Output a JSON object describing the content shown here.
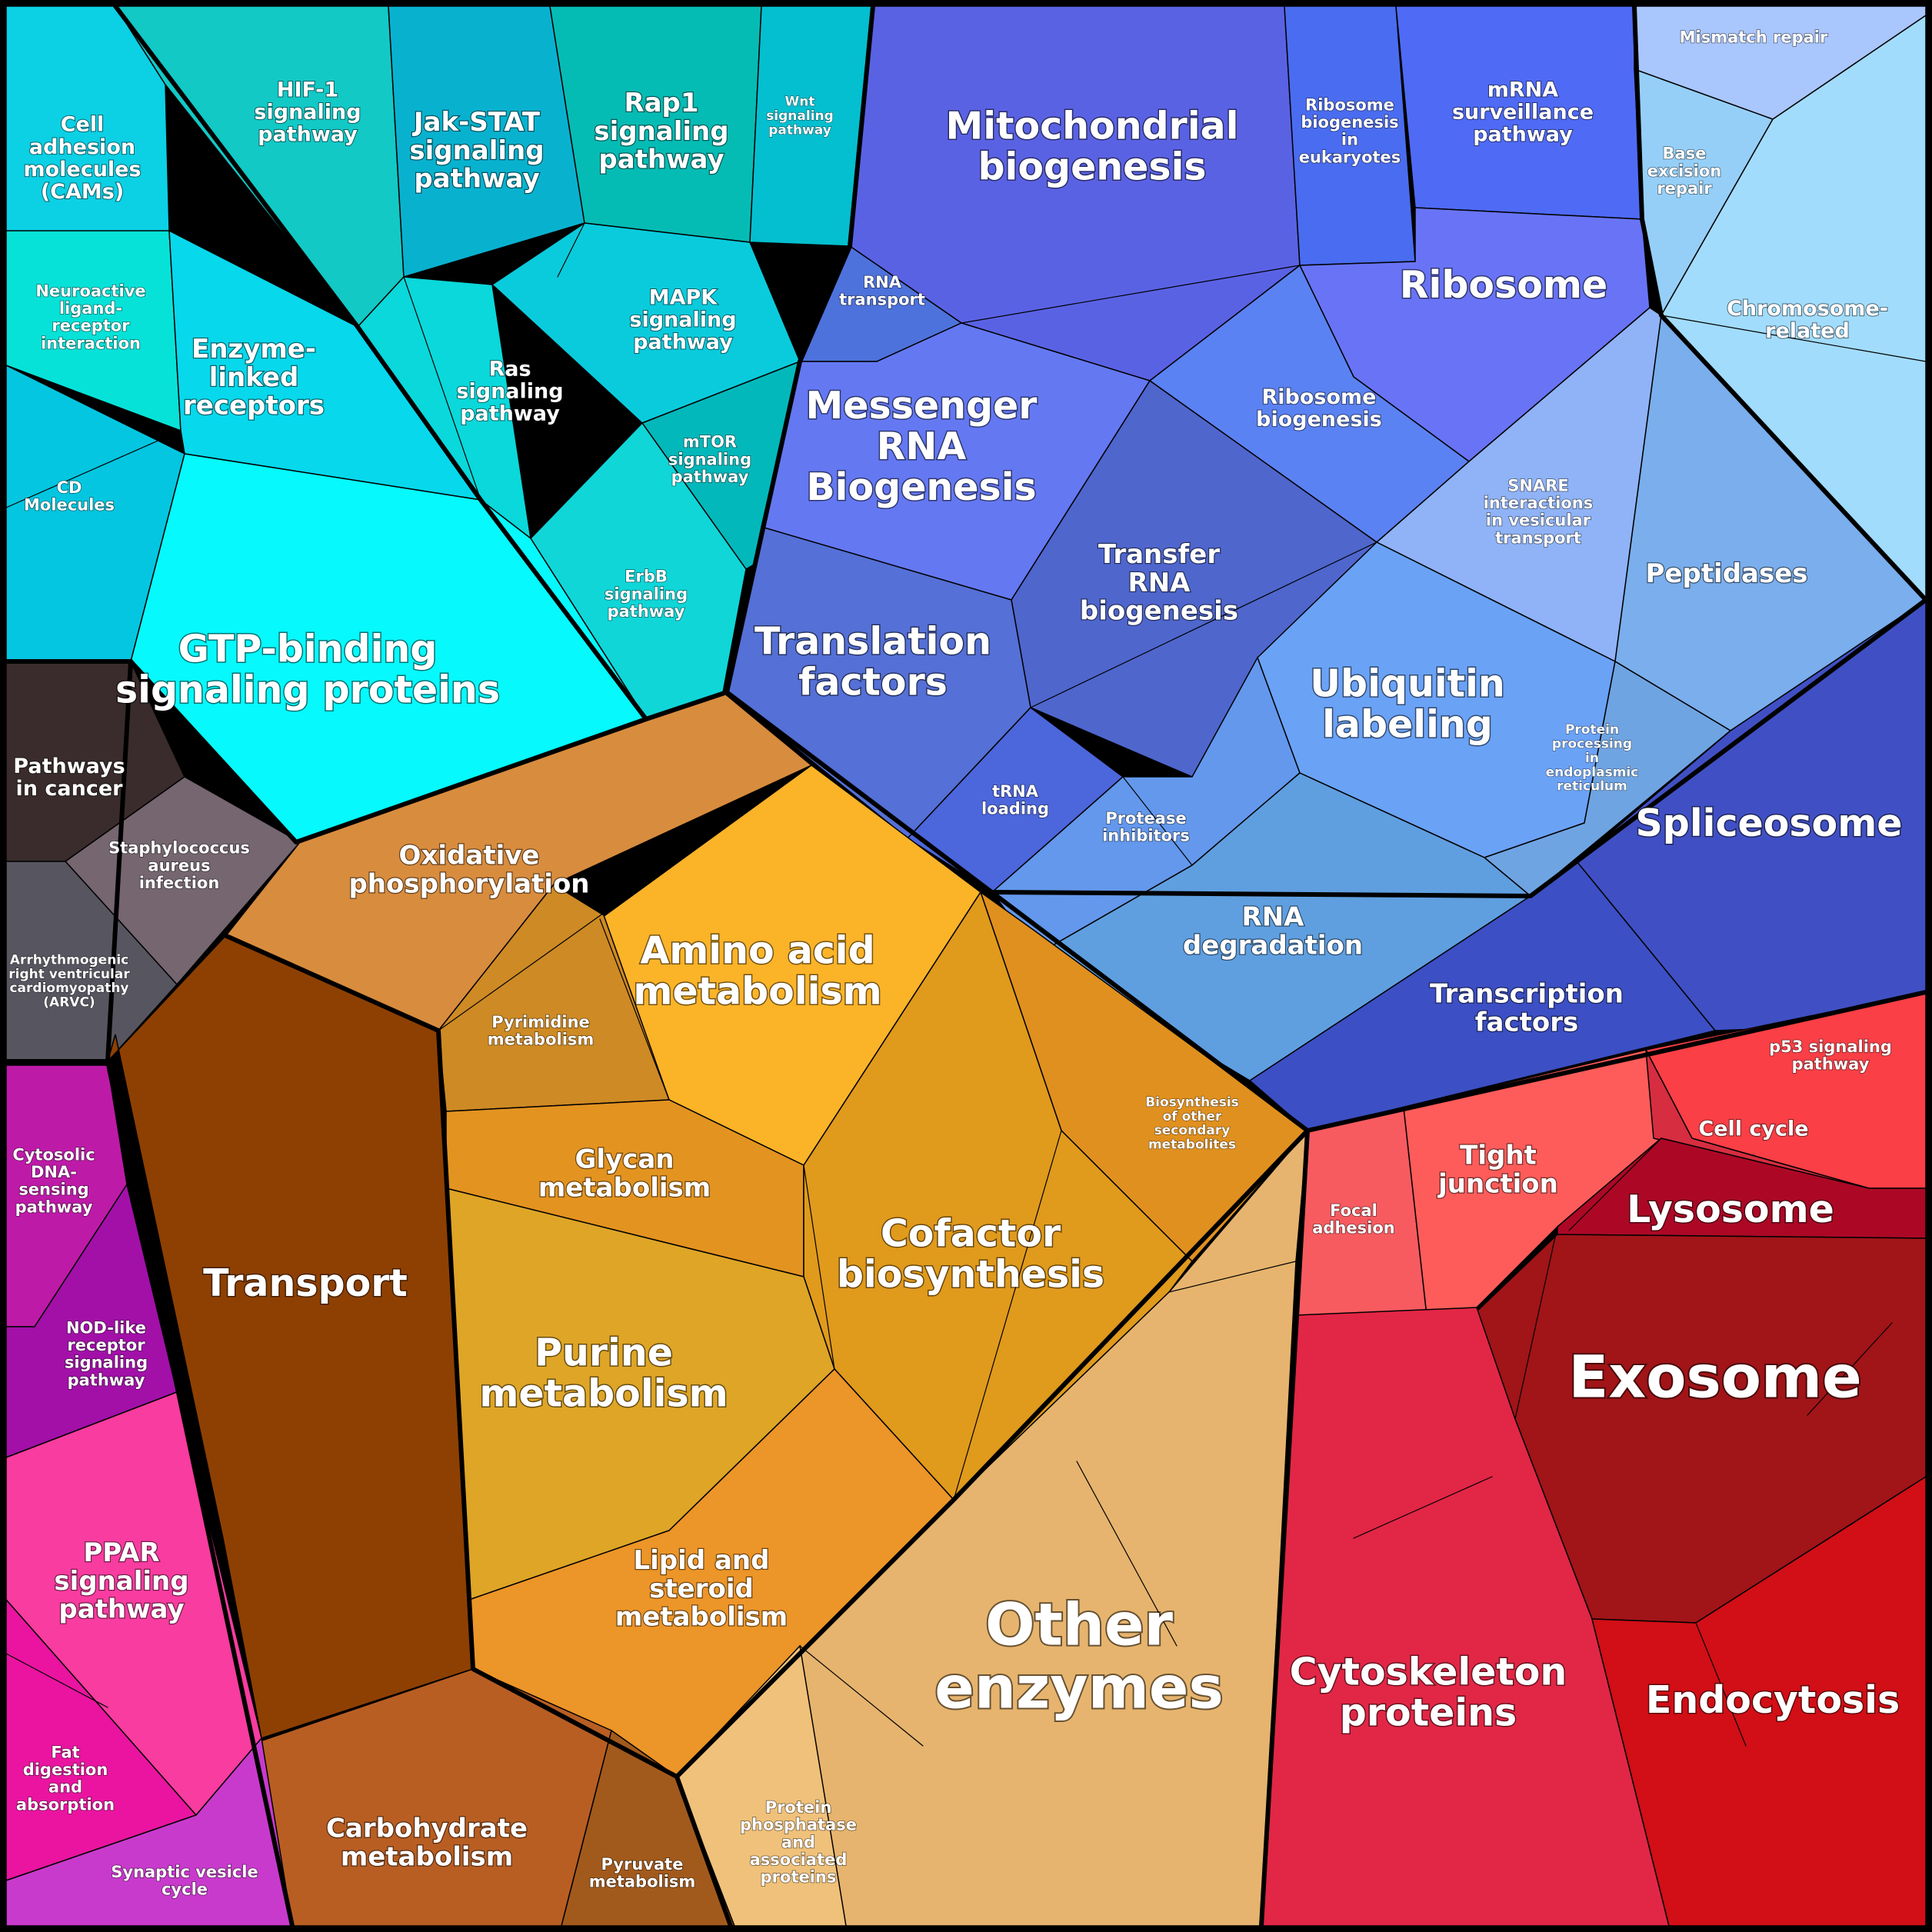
{
  "colors": {
    "background": "#000000",
    "cell_border": "#000000",
    "label_text": "#ffffff"
  },
  "cells": [
    {
      "id": "cell-adhesion",
      "label": [
        "Cell",
        "adhesion",
        "molecules",
        "(CAMs)"
      ],
      "color": "#0cd0e4",
      "size": "m"
    },
    {
      "id": "hif1",
      "label": [
        "HIF-1",
        "signaling",
        "pathway"
      ],
      "color": "#12c9c6",
      "size": "m"
    },
    {
      "id": "jak-stat",
      "label": [
        "Jak-STAT",
        "signaling",
        "pathway"
      ],
      "color": "#08b2cf",
      "size": "l"
    },
    {
      "id": "rap1",
      "label": [
        "Rap1",
        "signaling",
        "pathway"
      ],
      "color": "#05bcb4",
      "size": "l"
    },
    {
      "id": "wnt",
      "label": [
        "Wnt",
        "signaling",
        "pathway"
      ],
      "color": "#04bfcf",
      "size": "xs"
    },
    {
      "id": "neuroactive",
      "label": [
        "Neuroactive",
        "ligand-",
        "receptor",
        "interaction"
      ],
      "color": "#07e2d8",
      "size": "s"
    },
    {
      "id": "enzyme-linked",
      "label": [
        "Enzyme-",
        "linked",
        "receptors"
      ],
      "color": "#07d8ec",
      "size": "l"
    },
    {
      "id": "ras",
      "label": [
        "Ras",
        "signaling",
        "pathway"
      ],
      "color": "#0ad8da",
      "size": "m"
    },
    {
      "id": "mapk",
      "label": [
        "MAPK",
        "signaling",
        "pathway"
      ],
      "color": "#0acbdc",
      "size": "m"
    },
    {
      "id": "mtor",
      "label": [
        "mTOR",
        "signaling",
        "pathway"
      ],
      "color": "#03b8bb",
      "size": "s"
    },
    {
      "id": "cd-molecules",
      "label": [
        "CD",
        "Molecules"
      ],
      "color": "#04c6e0",
      "size": "s"
    },
    {
      "id": "erbb",
      "label": [
        "ErbB",
        "signaling",
        "pathway"
      ],
      "color": "#10d6d8",
      "size": "s"
    },
    {
      "id": "gtp-binding",
      "label": [
        "GTP-binding",
        "signaling proteins"
      ],
      "color": "#06f9fc",
      "size": "xl"
    },
    {
      "id": "mito-biogenesis",
      "label": [
        "Mitochondrial",
        "biogenesis"
      ],
      "color": "#5a62e4",
      "size": "xl"
    },
    {
      "id": "ribosome-euk",
      "label": [
        "Ribosome",
        "biogenesis",
        "in",
        "eukaryotes"
      ],
      "color": "#4a6cf0",
      "size": "s"
    },
    {
      "id": "mrna-surveillance",
      "label": [
        "mRNA",
        "surveillance",
        "pathway"
      ],
      "color": "#4f6af5",
      "size": "m"
    },
    {
      "id": "mismatch-repair",
      "label": [
        "Mismatch repair"
      ],
      "color": "#a9c6fd",
      "size": "s"
    },
    {
      "id": "base-excision",
      "label": [
        "Base",
        "excision",
        "repair"
      ],
      "color": "#95cff8",
      "size": "s"
    },
    {
      "id": "chromosome",
      "label": [
        "Chromosome-",
        "related"
      ],
      "color": "#a2dcfc",
      "size": "m"
    },
    {
      "id": "rna-transport",
      "label": [
        "RNA",
        "transport"
      ],
      "color": "#4e72dc",
      "size": "s"
    },
    {
      "id": "ribosome",
      "label": [
        "Ribosome"
      ],
      "color": "#6874f5",
      "size": "xl"
    },
    {
      "id": "ribosome-biogenesis",
      "label": [
        "Ribosome",
        "biogenesis"
      ],
      "color": "#5b82f2",
      "size": "m"
    },
    {
      "id": "messenger-rna",
      "label": [
        "Messenger",
        "RNA",
        "Biogenesis"
      ],
      "color": "#6478f2",
      "size": "xl"
    },
    {
      "id": "transfer-rna",
      "label": [
        "Transfer",
        "RNA",
        "biogenesis"
      ],
      "color": "#4f66cd",
      "size": "l"
    },
    {
      "id": "snare",
      "label": [
        "SNARE",
        "interactions",
        "in vesicular",
        "transport"
      ],
      "color": "#8fb3f6",
      "size": "s"
    },
    {
      "id": "peptidases",
      "label": [
        "Peptidases"
      ],
      "color": "#7aaeec",
      "size": "l"
    },
    {
      "id": "translation-factors",
      "label": [
        "Translation",
        "factors"
      ],
      "color": "#5570d6",
      "size": "xl"
    },
    {
      "id": "ubiquitin",
      "label": [
        "Ubiquitin",
        "labeling"
      ],
      "color": "#6aa2f6",
      "size": "xl"
    },
    {
      "id": "trna-loading",
      "label": [
        "tRNA",
        "loading"
      ],
      "color": "#4c66dc",
      "size": "s"
    },
    {
      "id": "protein-er",
      "label": [
        "Protein",
        "processing",
        "in",
        "endoplasmic",
        "reticulum"
      ],
      "color": "#6fa4e2",
      "size": "xs"
    },
    {
      "id": "protease-inhibitors",
      "label": [
        "Protease",
        "inhibitors"
      ],
      "color": "#6398ec",
      "size": "s"
    },
    {
      "id": "spliceosome",
      "label": [
        "Spliceosome"
      ],
      "color": "#4050c4",
      "size": "xl"
    },
    {
      "id": "rna-degradation",
      "label": [
        "RNA",
        "degradation"
      ],
      "color": "#5f9fe0",
      "size": "l"
    },
    {
      "id": "transcription-factors",
      "label": [
        "Transcription",
        "factors"
      ],
      "color": "#3c4fc4",
      "size": "l"
    },
    {
      "id": "pathways-cancer",
      "label": [
        "Pathways",
        "in cancer"
      ],
      "color": "#3a2c2c",
      "size": "m"
    },
    {
      "id": "staph",
      "label": [
        "Staphylococcus",
        "aureus",
        "infection"
      ],
      "color": "#756670",
      "size": "s"
    },
    {
      "id": "arvc",
      "label": [
        "Arrhythmogenic",
        "right ventricular",
        "cardiomyopathy",
        "(ARVC)"
      ],
      "color": "#575660",
      "size": "xs"
    },
    {
      "id": "oxidative",
      "label": [
        "Oxidative",
        "phosphorylation"
      ],
      "color": "#d88c3e",
      "size": "l"
    },
    {
      "id": "amino-acid",
      "label": [
        "Amino acid",
        "metabolism"
      ],
      "color": "#fbb328",
      "size": "xl"
    },
    {
      "id": "pyrimidine",
      "label": [
        "Pyrimidine",
        "metabolism"
      ],
      "color": "#ce8a24",
      "size": "s"
    },
    {
      "id": "biosynthesis-secondary",
      "label": [
        "Biosynthesis",
        "of other",
        "secondary",
        "metabolites"
      ],
      "color": "#e0901e",
      "size": "xs"
    },
    {
      "id": "glycan",
      "label": [
        "Glycan",
        "metabolism"
      ],
      "color": "#e39320",
      "size": "l"
    },
    {
      "id": "cofactor",
      "label": [
        "Cofactor",
        "biosynthesis"
      ],
      "color": "#e09a1c",
      "size": "xl"
    },
    {
      "id": "transport",
      "label": [
        "Transport"
      ],
      "color": "#8e4002",
      "size": "xl"
    },
    {
      "id": "purine",
      "label": [
        "Purine",
        "metabolism"
      ],
      "color": "#dea526",
      "size": "xl"
    },
    {
      "id": "lipid-steroid",
      "label": [
        "Lipid and",
        "steroid",
        "metabolism"
      ],
      "color": "#ec9528",
      "size": "l"
    },
    {
      "id": "other-enzymes",
      "label": [
        "Other",
        "enzymes"
      ],
      "color": "#e6b46e",
      "size": "xxl"
    },
    {
      "id": "carbohydrate",
      "label": [
        "Carbohydrate",
        "metabolism"
      ],
      "color": "#b85e23",
      "size": "l"
    },
    {
      "id": "pyruvate",
      "label": [
        "Pyruvate",
        "metabolism"
      ],
      "color": "#a25a1c",
      "size": "s"
    },
    {
      "id": "protein-phosphatase",
      "label": [
        "Protein",
        "phosphatase",
        "and",
        "associated",
        "proteins"
      ],
      "color": "#f0c17a",
      "size": "s"
    },
    {
      "id": "cytosolic-dna",
      "label": [
        "Cytosolic",
        "DNA-",
        "sensing",
        "pathway"
      ],
      "color": "#be1aa8",
      "size": "s"
    },
    {
      "id": "nod-like",
      "label": [
        "NOD-like",
        "receptor",
        "signaling",
        "pathway"
      ],
      "color": "#a210a8",
      "size": "s"
    },
    {
      "id": "ppar",
      "label": [
        "PPAR",
        "signaling",
        "pathway"
      ],
      "color": "#f83ca0",
      "size": "l"
    },
    {
      "id": "fat-digestion",
      "label": [
        "Fat",
        "digestion",
        "and",
        "absorption"
      ],
      "color": "#ea14a0",
      "size": "s"
    },
    {
      "id": "synaptic-vesicle",
      "label": [
        "Synaptic vesicle",
        "cycle"
      ],
      "color": "#c83acc",
      "size": "s"
    },
    {
      "id": "p53",
      "label": [
        "p53 signaling",
        "pathway"
      ],
      "color": "#fa3f46",
      "size": "s"
    },
    {
      "id": "focal-adhesion",
      "label": [
        "Focal",
        "adhesion"
      ],
      "color": "#f75b60",
      "size": "s"
    },
    {
      "id": "tight-junction",
      "label": [
        "Tight",
        "junction"
      ],
      "color": "#fd5c5a",
      "size": "l"
    },
    {
      "id": "cell-cycle",
      "label": [
        "Cell cycle"
      ],
      "color": "#d62d40",
      "size": "m"
    },
    {
      "id": "lysosome",
      "label": [
        "Lysosome"
      ],
      "color": "#ac0826",
      "size": "xl"
    },
    {
      "id": "exosome",
      "label": [
        "Exosome"
      ],
      "color": "#a11418",
      "size": "xxl"
    },
    {
      "id": "cytoskeleton",
      "label": [
        "Cytoskeleton",
        "proteins"
      ],
      "color": "#e22646",
      "size": "xl"
    },
    {
      "id": "endocytosis",
      "label": [
        "Endocytosis"
      ],
      "color": "#d20e16",
      "size": "xl"
    }
  ]
}
